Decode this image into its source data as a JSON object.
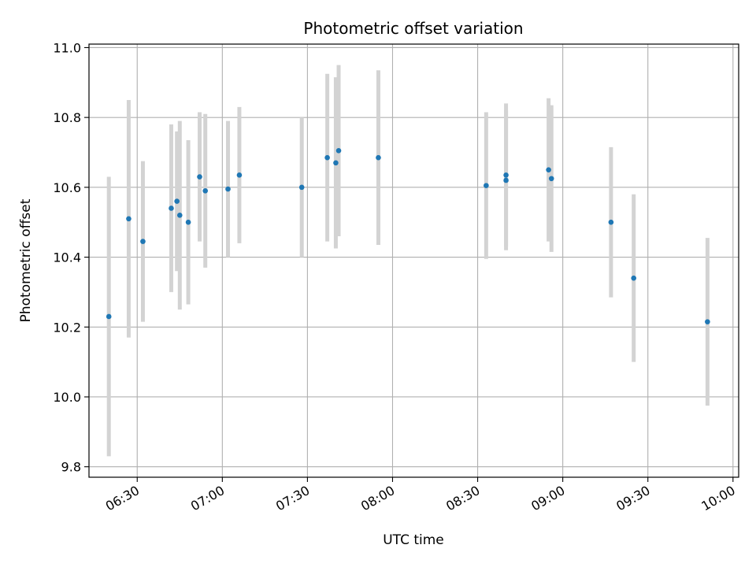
{
  "chart_data": {
    "type": "scatter",
    "title": "Photometric offset variation",
    "xlabel": "UTC time",
    "ylabel": "Photometric offset",
    "x_ticks": [
      "06:30",
      "07:00",
      "07:30",
      "08:00",
      "08:30",
      "09:00",
      "09:30",
      "10:00"
    ],
    "y_ticks": [
      "9.8",
      "10.0",
      "10.2",
      "10.4",
      "10.6",
      "10.8",
      "11.0"
    ],
    "xlim": [
      "06:13",
      "10:02"
    ],
    "ylim": [
      9.77,
      11.01
    ],
    "grid": true,
    "point_color": "#1f77b4",
    "errorbar_color": "#d3d3d3",
    "points": [
      {
        "x": "06:20",
        "y": 10.23,
        "err": 0.4
      },
      {
        "x": "06:27",
        "y": 10.51,
        "err": 0.34
      },
      {
        "x": "06:32",
        "y": 10.445,
        "err": 0.23
      },
      {
        "x": "06:42",
        "y": 10.54,
        "err": 0.24
      },
      {
        "x": "06:44",
        "y": 10.56,
        "err": 0.2
      },
      {
        "x": "06:45",
        "y": 10.52,
        "err": 0.27
      },
      {
        "x": "06:48",
        "y": 10.5,
        "err": 0.235
      },
      {
        "x": "06:52",
        "y": 10.63,
        "err": 0.185
      },
      {
        "x": "06:54",
        "y": 10.59,
        "err": 0.22
      },
      {
        "x": "07:02",
        "y": 10.595,
        "err": 0.195
      },
      {
        "x": "07:06",
        "y": 10.635,
        "err": 0.195
      },
      {
        "x": "07:28",
        "y": 10.6,
        "err": 0.2
      },
      {
        "x": "07:37",
        "y": 10.685,
        "err": 0.24
      },
      {
        "x": "07:40",
        "y": 10.67,
        "err": 0.245
      },
      {
        "x": "07:41",
        "y": 10.705,
        "err": 0.245
      },
      {
        "x": "07:55",
        "y": 10.685,
        "err": 0.25
      },
      {
        "x": "08:33",
        "y": 10.605,
        "err": 0.21
      },
      {
        "x": "08:40",
        "y": 10.62,
        "err": 0.2
      },
      {
        "x": "08:40",
        "y": 10.635,
        "err": 0.205
      },
      {
        "x": "08:55",
        "y": 10.65,
        "err": 0.205
      },
      {
        "x": "08:56",
        "y": 10.625,
        "err": 0.21
      },
      {
        "x": "09:17",
        "y": 10.5,
        "err": 0.215
      },
      {
        "x": "09:25",
        "y": 10.34,
        "err": 0.24
      },
      {
        "x": "09:51",
        "y": 10.215,
        "err": 0.24
      }
    ]
  }
}
